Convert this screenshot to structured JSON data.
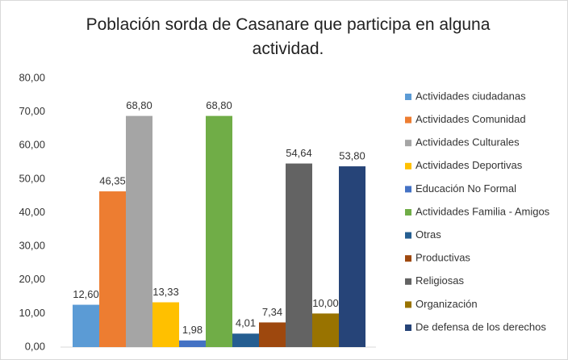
{
  "chart_data": {
    "type": "bar",
    "title": "Población sorda de Casanare que participa en alguna actividad.",
    "categories": [
      null
    ],
    "ylim": [
      0,
      80
    ],
    "yticks": [
      {
        "value": 0,
        "label": "0,00"
      },
      {
        "value": 10,
        "label": "10,00"
      },
      {
        "value": 20,
        "label": "20,00"
      },
      {
        "value": 30,
        "label": "30,00"
      },
      {
        "value": 40,
        "label": "40,00"
      },
      {
        "value": 50,
        "label": "50,00"
      },
      {
        "value": 60,
        "label": "60,00"
      },
      {
        "value": 70,
        "label": "70,00"
      },
      {
        "value": 80,
        "label": "80,00"
      }
    ],
    "grid": false,
    "legend": "right",
    "series": [
      {
        "name": "Actividades ciudadanas",
        "color": "#5b9bd5",
        "values": [
          12.6
        ],
        "value_labels": [
          "12,60"
        ]
      },
      {
        "name": "Actividades Comunidad",
        "color": "#ed7d31",
        "values": [
          46.35
        ],
        "value_labels": [
          "46,35"
        ]
      },
      {
        "name": "Actividades Culturales",
        "color": "#a5a5a5",
        "values": [
          68.8
        ],
        "value_labels": [
          "68,80"
        ]
      },
      {
        "name": "Actividades Deportivas",
        "color": "#ffc000",
        "values": [
          13.33
        ],
        "value_labels": [
          "13,33"
        ]
      },
      {
        "name": "Educación No Formal",
        "color": "#4472c4",
        "values": [
          1.98
        ],
        "value_labels": [
          "1,98"
        ]
      },
      {
        "name": "Actividades Familia - Amigos",
        "color": "#70ad47",
        "values": [
          68.8
        ],
        "value_labels": [
          "68,80"
        ]
      },
      {
        "name": "Otras",
        "color": "#255e91",
        "values": [
          4.01
        ],
        "value_labels": [
          "4,01"
        ]
      },
      {
        "name": "Productivas",
        "color": "#9e480e",
        "values": [
          7.34
        ],
        "value_labels": [
          "7,34"
        ]
      },
      {
        "name": "Religiosas",
        "color": "#636363",
        "values": [
          54.64
        ],
        "value_labels": [
          "54,64"
        ]
      },
      {
        "name": "Organización",
        "color": "#997300",
        "values": [
          10.0
        ],
        "value_labels": [
          "10,00"
        ]
      },
      {
        "name": "De defensa de los derechos",
        "color": "#264478",
        "values": [
          53.8
        ],
        "value_labels": [
          "53,80"
        ]
      }
    ]
  }
}
